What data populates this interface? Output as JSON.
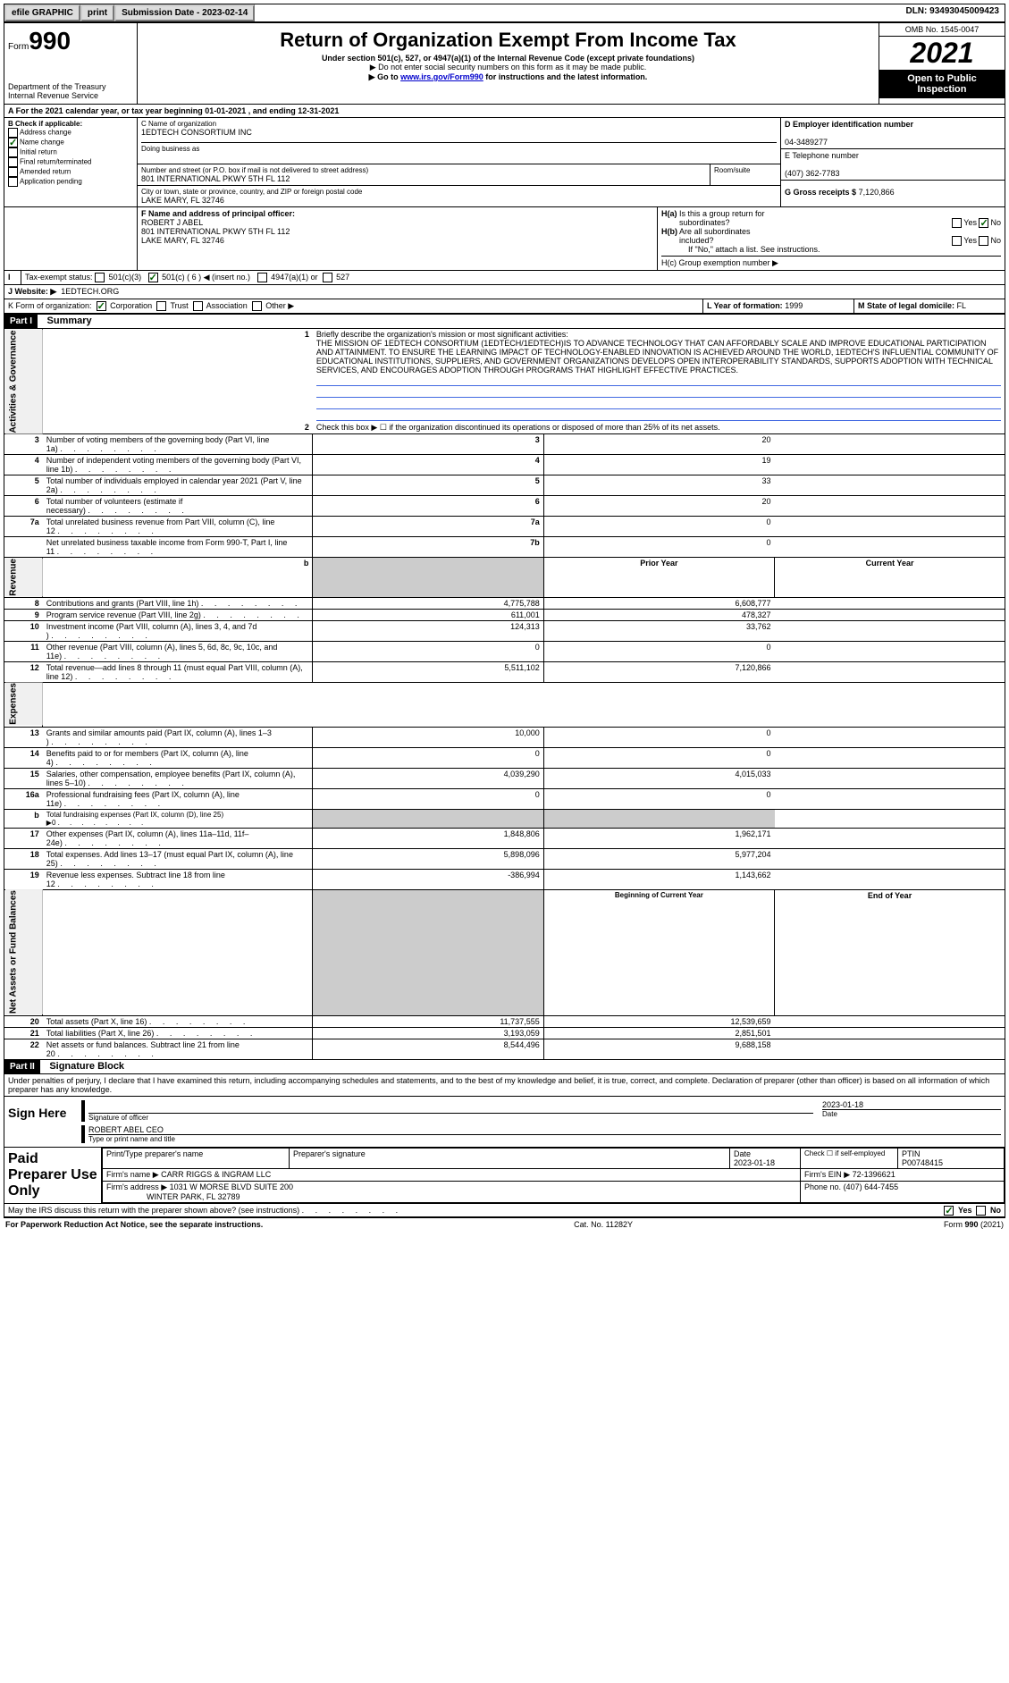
{
  "topbar": {
    "efile": "efile GRAPHIC",
    "print": "print",
    "submission": "Submission Date - 2023-02-14",
    "dln": "DLN: 93493045009423"
  },
  "header": {
    "form_prefix": "Form",
    "form_number": "990",
    "dept": "Department of the Treasury",
    "irs": "Internal Revenue Service",
    "title": "Return of Organization Exempt From Income Tax",
    "subtitle": "Under section 501(c), 527, or 4947(a)(1) of the Internal Revenue Code (except private foundations)",
    "note1": "▶ Do not enter social security numbers on this form as it may be made public.",
    "note2_prefix": "▶ Go to ",
    "note2_link": "www.irs.gov/Form990",
    "note2_suffix": " for instructions and the latest information.",
    "omb": "OMB No. 1545-0047",
    "year": "2021",
    "open": "Open to Public Inspection"
  },
  "line_a": "For the 2021 calendar year, or tax year beginning 01-01-2021   , and ending 12-31-2021",
  "box_b": {
    "title": "B Check if applicable:",
    "items": [
      "Address change",
      "Name change",
      "Initial return",
      "Final return/terminated",
      "Amended return",
      "Application pending"
    ]
  },
  "box_c": {
    "label_name": "C Name of organization",
    "name": "1EDTECH CONSORTIUM INC",
    "dba_label": "Doing business as",
    "addr_label": "Number and street (or P.O. box if mail is not delivered to street address)",
    "addr": "801 INTERNATIONAL PKWY 5TH FL 112",
    "room_label": "Room/suite",
    "city_label": "City or town, state or province, country, and ZIP or foreign postal code",
    "city": "LAKE MARY, FL  32746"
  },
  "box_d": {
    "label": "D Employer identification number",
    "value": "04-3489277"
  },
  "box_e": {
    "label": "E Telephone number",
    "value": "(407) 362-7783"
  },
  "box_g": {
    "label": "G Gross receipts $",
    "value": "7,120,866"
  },
  "box_f": {
    "label": "F  Name and address of principal officer:",
    "name": "ROBERT J ABEL",
    "addr1": "801 INTERNATIONAL PKWY 5TH FL 112",
    "addr2": "LAKE MARY, FL  32746"
  },
  "box_h": {
    "ha": "H(a)  Is this a group return for subordinates?",
    "hb": "H(b)  Are all subordinates included?",
    "hb_note": "If \"No,\" attach a list. See instructions.",
    "hc": "H(c)  Group exemption number ▶",
    "yes": "Yes",
    "no": "No"
  },
  "box_i": {
    "label": "Tax-exempt status:",
    "opts": [
      "501(c)(3)",
      "501(c) ( 6 ) ◀ (insert no.)",
      "4947(a)(1) or",
      "527"
    ]
  },
  "box_j": {
    "label": "J   Website: ▶",
    "value": "1EDTECH.ORG"
  },
  "box_k": {
    "label": "K Form of organization:",
    "opts": [
      "Corporation",
      "Trust",
      "Association",
      "Other ▶"
    ]
  },
  "box_l": {
    "label": "L Year of formation:",
    "value": "1999"
  },
  "box_m": {
    "label": "M State of legal domicile:",
    "value": "FL"
  },
  "part1": {
    "header": "Part I",
    "title": "Summary"
  },
  "summary": {
    "line1_label": "Briefly describe the organization's mission or most significant activities:",
    "line1_text": "THE MISSION OF 1EDTECH CONSORTIUM (1EDTECH/1EDTECH)IS TO ADVANCE TECHNOLOGY THAT CAN AFFORDABLY SCALE AND IMPROVE EDUCATIONAL PARTICIPATION AND ATTAINMENT. TO ENSURE THE LEARNING IMPACT OF TECHNOLOGY-ENABLED INNOVATION IS ACHIEVED AROUND THE WORLD, 1EDTECH'S INFLUENTIAL COMMUNITY OF EDUCATIONAL INSTITUTIONS, SUPPLIERS, AND GOVERNMENT ORGANIZATIONS DEVELOPS OPEN INTEROPERABILITY STANDARDS, SUPPORTS ADOPTION WITH TECHNICAL SERVICES, AND ENCOURAGES ADOPTION THROUGH PROGRAMS THAT HIGHLIGHT EFFECTIVE PRACTICES.",
    "line2": "Check this box ▶ ☐ if the organization discontinued its operations or disposed of more than 25% of its net assets.",
    "vlabel_gov": "Activities & Governance",
    "vlabel_rev": "Revenue",
    "vlabel_exp": "Expenses",
    "vlabel_net": "Net Assets or Fund Balances",
    "rows_gov": [
      {
        "n": "3",
        "t": "Number of voting members of the governing body (Part VI, line 1a)",
        "c": "3",
        "v": "20"
      },
      {
        "n": "4",
        "t": "Number of independent voting members of the governing body (Part VI, line 1b)",
        "c": "4",
        "v": "19"
      },
      {
        "n": "5",
        "t": "Total number of individuals employed in calendar year 2021 (Part V, line 2a)",
        "c": "5",
        "v": "33"
      },
      {
        "n": "6",
        "t": "Total number of volunteers (estimate if necessary)",
        "c": "6",
        "v": "20"
      },
      {
        "n": "7a",
        "t": "Total unrelated business revenue from Part VIII, column (C), line 12",
        "c": "7a",
        "v": "0"
      },
      {
        "n": "",
        "t": "Net unrelated business taxable income from Form 990-T, Part I, line 11",
        "c": "7b",
        "v": "0"
      }
    ],
    "col_headers": {
      "b": "b",
      "prior": "Prior Year",
      "current": "Current Year"
    },
    "rows_rev": [
      {
        "n": "8",
        "t": "Contributions and grants (Part VIII, line 1h)",
        "p": "4,775,788",
        "c": "6,608,777"
      },
      {
        "n": "9",
        "t": "Program service revenue (Part VIII, line 2g)",
        "p": "611,001",
        "c": "478,327"
      },
      {
        "n": "10",
        "t": "Investment income (Part VIII, column (A), lines 3, 4, and 7d )",
        "p": "124,313",
        "c": "33,762"
      },
      {
        "n": "11",
        "t": "Other revenue (Part VIII, column (A), lines 5, 6d, 8c, 9c, 10c, and 11e)",
        "p": "0",
        "c": "0"
      },
      {
        "n": "12",
        "t": "Total revenue—add lines 8 through 11 (must equal Part VIII, column (A), line 12)",
        "p": "5,511,102",
        "c": "7,120,866"
      }
    ],
    "rows_exp": [
      {
        "n": "13",
        "t": "Grants and similar amounts paid (Part IX, column (A), lines 1–3 )",
        "p": "10,000",
        "c": "0"
      },
      {
        "n": "14",
        "t": "Benefits paid to or for members (Part IX, column (A), line 4)",
        "p": "0",
        "c": "0"
      },
      {
        "n": "15",
        "t": "Salaries, other compensation, employee benefits (Part IX, column (A), lines 5–10)",
        "p": "4,039,290",
        "c": "4,015,033"
      },
      {
        "n": "16a",
        "t": "Professional fundraising fees (Part IX, column (A), line 11e)",
        "p": "0",
        "c": "0"
      },
      {
        "n": "b",
        "t": "Total fundraising expenses (Part IX, column (D), line 25) ▶0",
        "p": "",
        "c": ""
      },
      {
        "n": "17",
        "t": "Other expenses (Part IX, column (A), lines 11a–11d, 11f–24e)",
        "p": "1,848,806",
        "c": "1,962,171"
      },
      {
        "n": "18",
        "t": "Total expenses. Add lines 13–17 (must equal Part IX, column (A), line 25)",
        "p": "5,898,096",
        "c": "5,977,204"
      },
      {
        "n": "19",
        "t": "Revenue less expenses. Subtract line 18 from line 12",
        "p": "-386,994",
        "c": "1,143,662"
      }
    ],
    "net_headers": {
      "beg": "Beginning of Current Year",
      "end": "End of Year"
    },
    "rows_net": [
      {
        "n": "20",
        "t": "Total assets (Part X, line 16)",
        "p": "11,737,555",
        "c": "12,539,659"
      },
      {
        "n": "21",
        "t": "Total liabilities (Part X, line 26)",
        "p": "3,193,059",
        "c": "2,851,501"
      },
      {
        "n": "22",
        "t": "Net assets or fund balances. Subtract line 21 from line 20",
        "p": "8,544,496",
        "c": "9,688,158"
      }
    ]
  },
  "part2": {
    "header": "Part II",
    "title": "Signature Block",
    "declaration": "Under penalties of perjury, I declare that I have examined this return, including accompanying schedules and statements, and to the best of my knowledge and belief, it is true, correct, and complete. Declaration of preparer (other than officer) is based on all information of which preparer has any knowledge."
  },
  "sign": {
    "label": "Sign Here",
    "sig_label": "Signature of officer",
    "date_label": "Date",
    "date": "2023-01-18",
    "name": "ROBERT ABEL  CEO",
    "name_label": "Type or print name and title"
  },
  "paid": {
    "label": "Paid Preparer Use Only",
    "h1": "Print/Type preparer's name",
    "h2": "Preparer's signature",
    "h3": "Date",
    "date": "2023-01-18",
    "h4_check": "Check ☐ if self-employed",
    "h5": "PTIN",
    "ptin": "P00748415",
    "firm_label": "Firm's name      ▶",
    "firm": "CARR RIGGS & INGRAM LLC",
    "ein_label": "Firm's EIN ▶",
    "ein": "72-1396621",
    "addr_label": "Firm's address ▶",
    "addr1": "1031 W MORSE BLVD SUITE 200",
    "addr2": "WINTER PARK, FL  32789",
    "phone_label": "Phone no.",
    "phone": "(407) 644-7455"
  },
  "bottom": {
    "discuss": "May the IRS discuss this return with the preparer shown above? (see instructions)",
    "yes": "Yes",
    "no": "No",
    "paperwork": "For Paperwork Reduction Act Notice, see the separate instructions.",
    "cat": "Cat. No. 11282Y",
    "form": "Form 990 (2021)"
  }
}
